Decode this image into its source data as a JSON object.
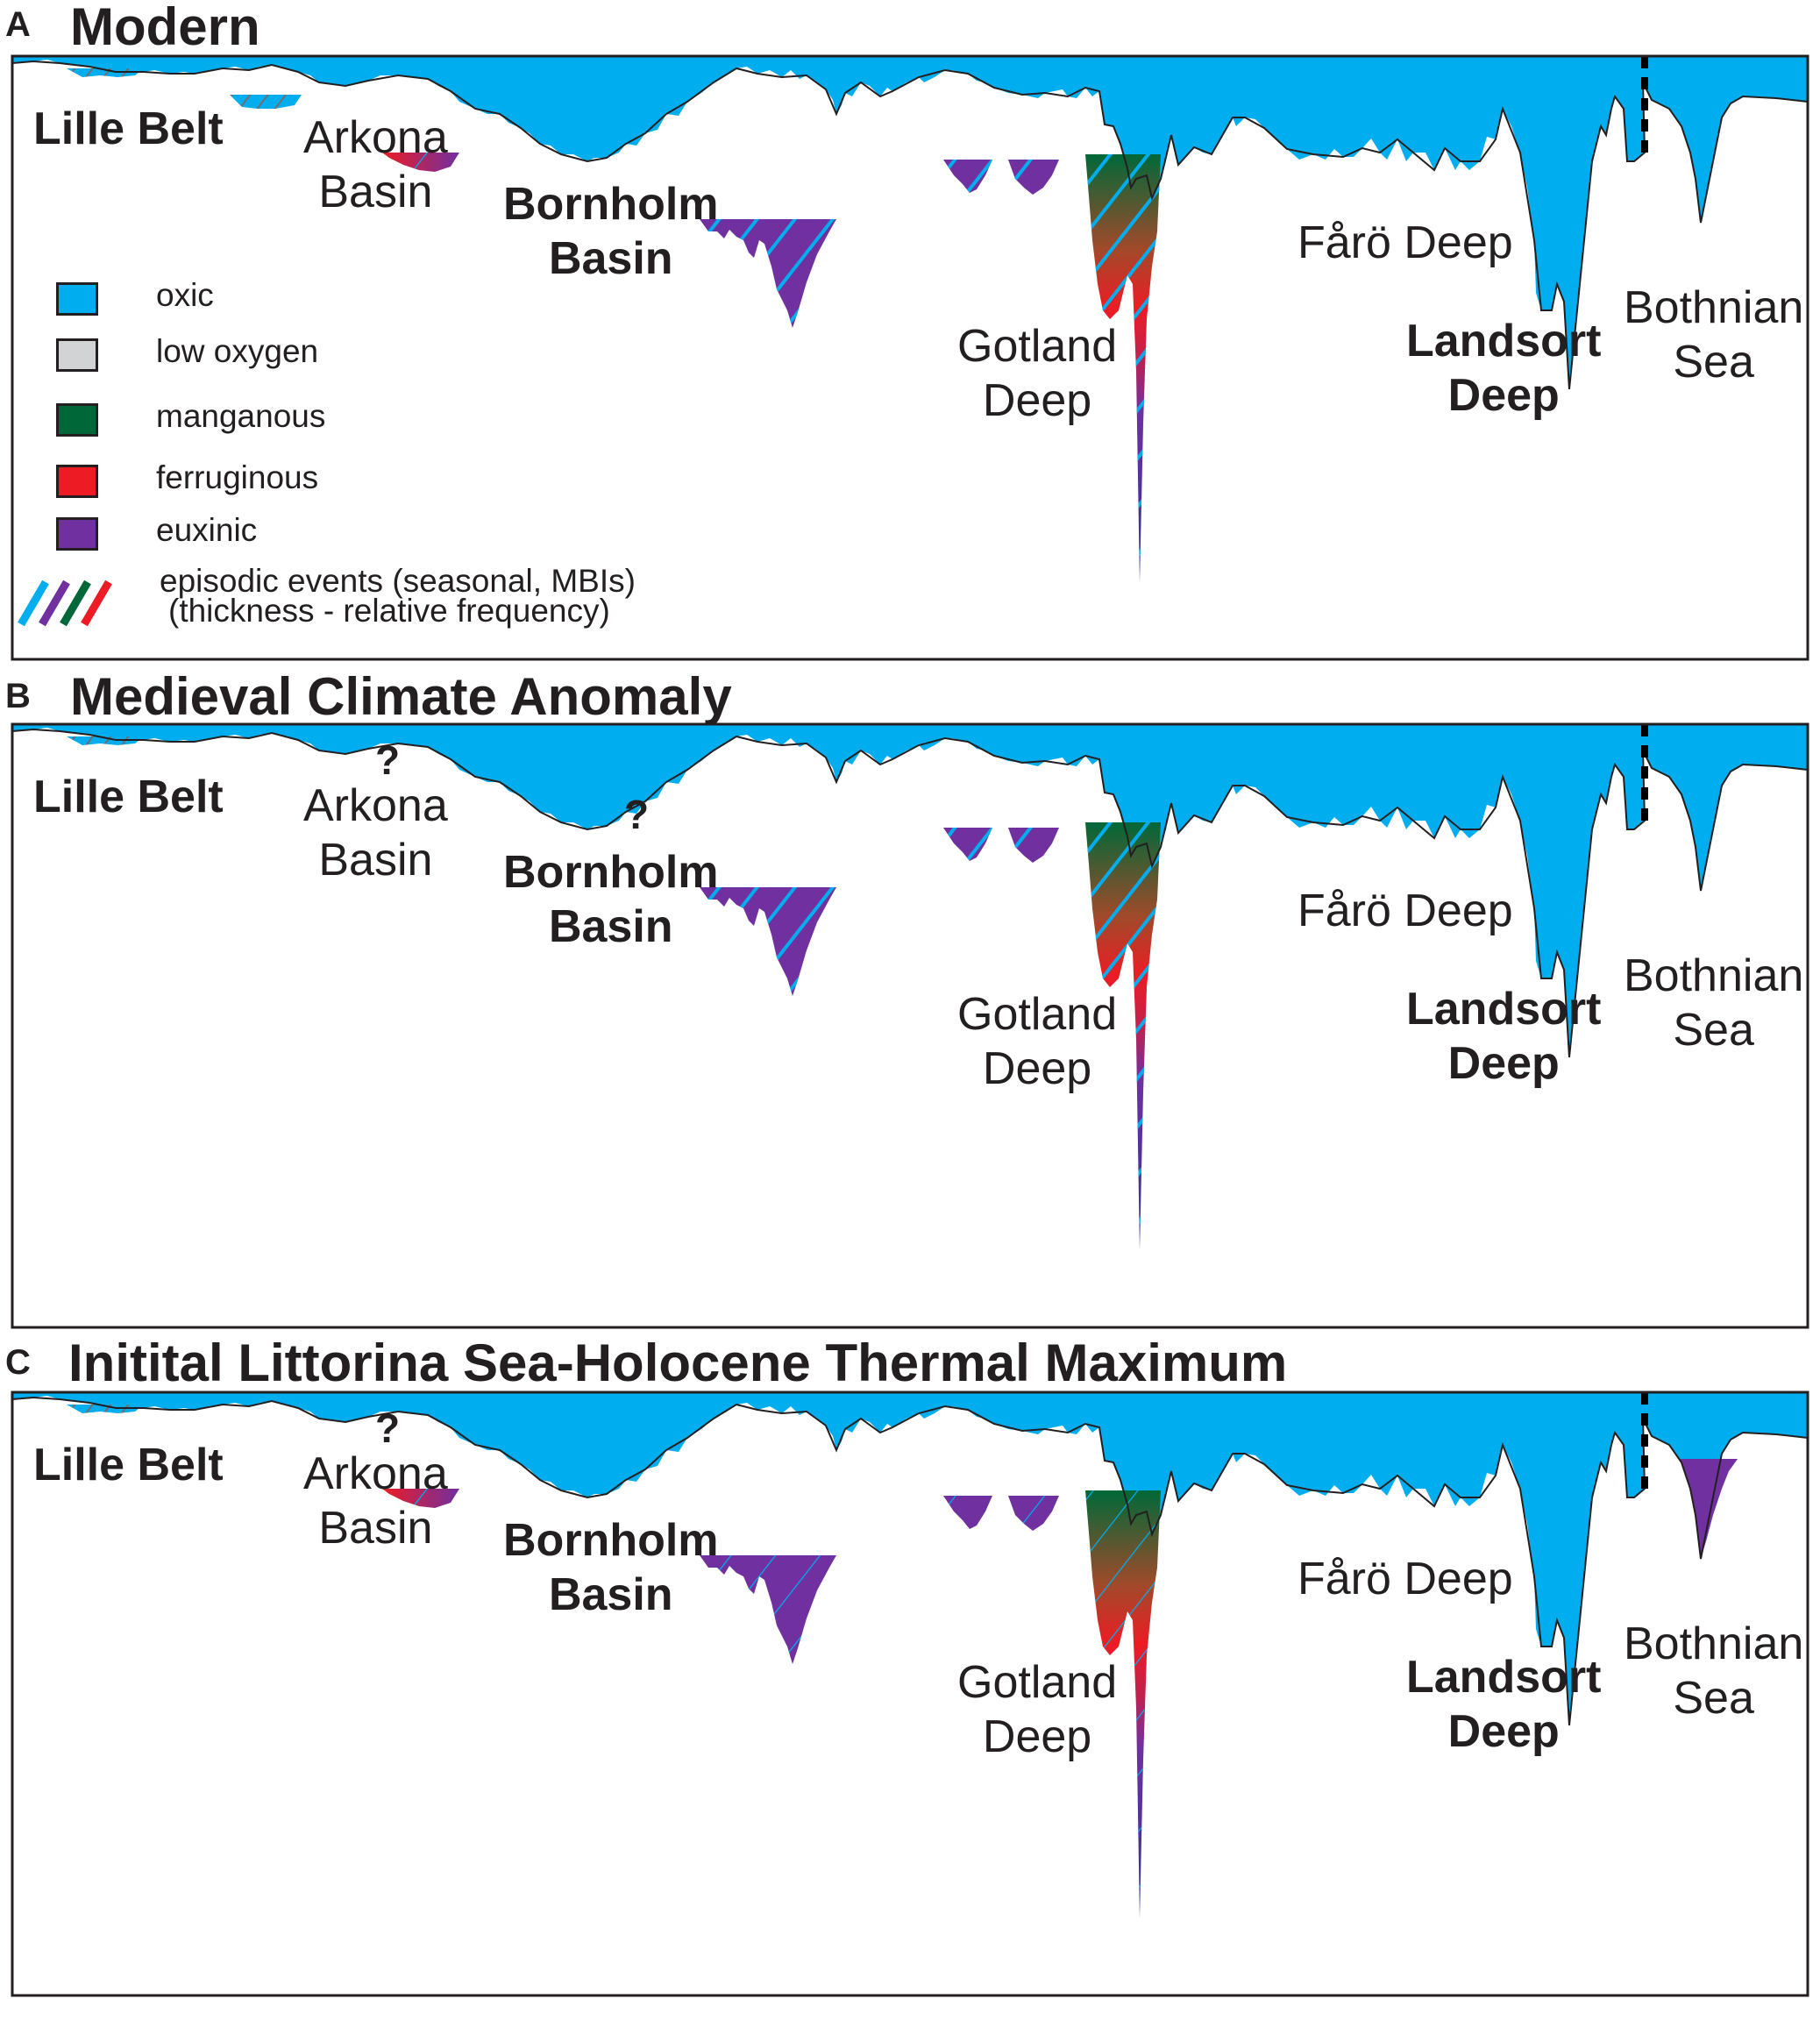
{
  "colors": {
    "oxic": "#00aeef",
    "low_oxygen": "#d1d3d4",
    "manganous": "#006838",
    "ferruginous": "#ed1c24",
    "euxinic": "#7030a0"
  },
  "panels": [
    {
      "letter": "A",
      "title": "Modern",
      "labels": {
        "lille_belt": "Lille Belt",
        "arkona_1": "Arkona",
        "arkona_2": "Basin",
        "bornholm_1": "Bornholm",
        "bornholm_2": "Basin",
        "gotland_1": "Gotland",
        "gotland_2": "Deep",
        "faro": "Fårö Deep",
        "landsort_1": "Landsort",
        "landsort_2": "Deep",
        "bothnian_1": "Bothnian",
        "bothnian_2": "Sea"
      }
    },
    {
      "letter": "B",
      "title": "Medieval Climate Anomaly",
      "question_mark": "?",
      "labels": {
        "lille_belt": "Lille Belt",
        "arkona_1": "Arkona",
        "arkona_2": "Basin",
        "bornholm_1": "Bornholm",
        "bornholm_2": "Basin",
        "gotland_1": "Gotland",
        "gotland_2": "Deep",
        "faro": "Fårö Deep",
        "landsort_1": "Landsort",
        "landsort_2": "Deep",
        "bothnian_1": "Bothnian",
        "bothnian_2": "Sea"
      }
    },
    {
      "letter": "C",
      "title": "Initital Littorina Sea-Holocene Thermal Maximum",
      "question_mark": "?",
      "labels": {
        "lille_belt": "Lille Belt",
        "arkona_1": "Arkona",
        "arkona_2": "Basin",
        "bornholm_1": "Bornholm",
        "bornholm_2": "Basin",
        "gotland_1": "Gotland",
        "gotland_2": "Deep",
        "faro": "Fårö Deep",
        "landsort_1": "Landsort",
        "landsort_2": "Deep",
        "bothnian_1": "Bothnian",
        "bothnian_2": "Sea"
      }
    }
  ],
  "legend": {
    "items": [
      {
        "label": "oxic",
        "color": "#00aeef"
      },
      {
        "label": "low oxygen",
        "color": "#d1d3d4"
      },
      {
        "label": "manganous",
        "color": "#006838"
      },
      {
        "label": "ferruginous",
        "color": "#ed1c24"
      },
      {
        "label": "euxinic",
        "color": "#7030a0"
      }
    ],
    "episodic_line1": "episodic events (seasonal, MBIs)",
    "episodic_line2": "(thickness - relative frequency)"
  }
}
